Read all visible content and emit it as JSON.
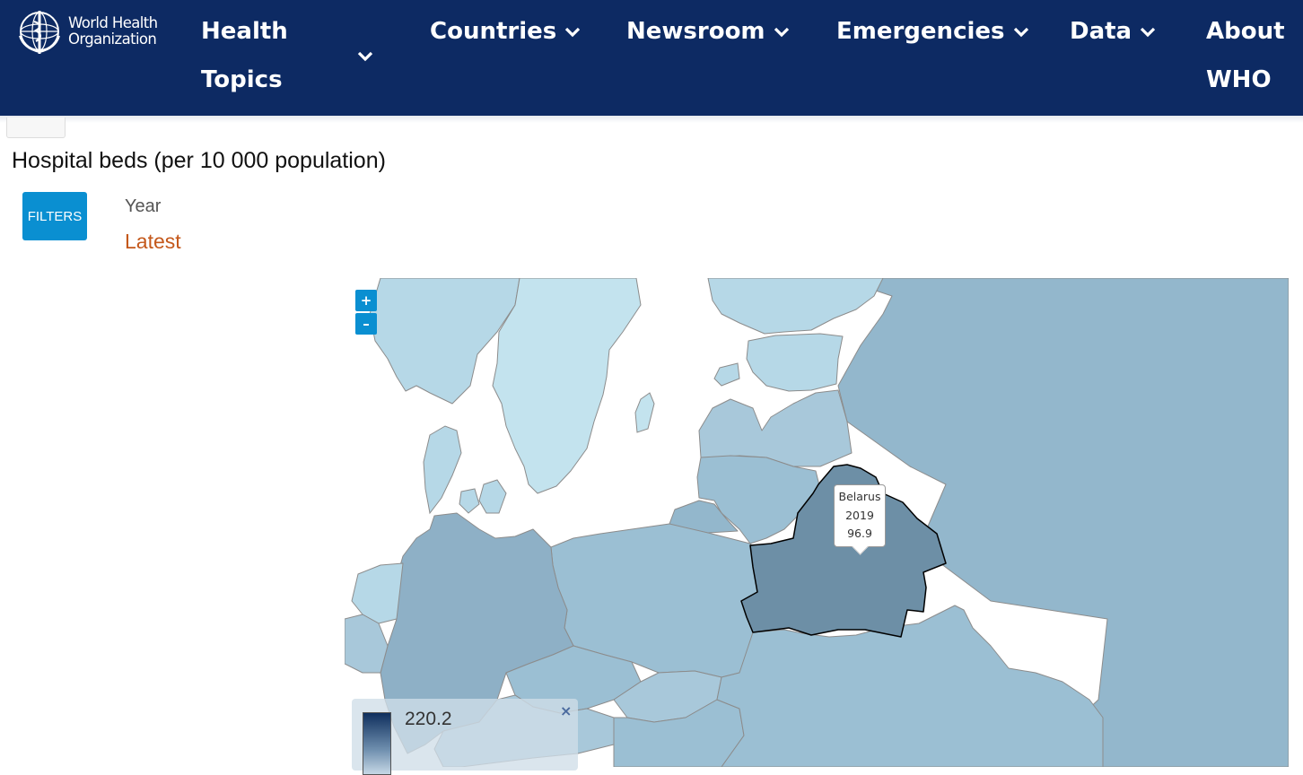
{
  "header": {
    "logo_line1": "World Health",
    "logo_line2": "Organization",
    "nav": [
      {
        "line1": "Health",
        "line2": "Topics"
      },
      {
        "label": "Countries"
      },
      {
        "label": "Newsroom"
      },
      {
        "label": "Emergencies"
      },
      {
        "label": "Data"
      },
      {
        "line1": "About",
        "line2": "WHO"
      }
    ]
  },
  "page": {
    "title": "Hospital beds (per 10 000 population)",
    "filters_label": "FILTERS",
    "year_label": "Year",
    "year_value": "Latest"
  },
  "map": {
    "zoom_in": "+",
    "zoom_out": "–",
    "tooltip": {
      "country": "Belarus",
      "year": "2019",
      "value": "96.9"
    },
    "legend": {
      "max": "220.2",
      "close": "×"
    },
    "colors": {
      "sea": "#ffffff",
      "lightest": "#c3e3ee",
      "light": "#b6d8e7",
      "mid_light": "#a8c8da",
      "mid": "#9bbfd3",
      "russia": "#93b7cc",
      "germany": "#8eb0c6",
      "belarus": "#6d8fa6",
      "border": "#8c8c8c"
    }
  }
}
